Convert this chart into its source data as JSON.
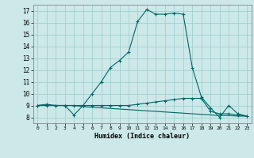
{
  "xlabel": "Humidex (Indice chaleur)",
  "bg_color": "#cce8e8",
  "line_color": "#006666",
  "grid_color": "#99cccc",
  "xlim": [
    -0.5,
    23.5
  ],
  "ylim": [
    7.5,
    17.5
  ],
  "yticks": [
    8,
    9,
    10,
    11,
    12,
    13,
    14,
    15,
    16,
    17
  ],
  "xticks": [
    0,
    1,
    2,
    3,
    4,
    5,
    6,
    7,
    8,
    9,
    10,
    11,
    12,
    13,
    14,
    15,
    16,
    17,
    18,
    19,
    20,
    21,
    22,
    23
  ],
  "line1_x": [
    0,
    1,
    2,
    3,
    4,
    5,
    6,
    7,
    8,
    9,
    10,
    11,
    12,
    13,
    14,
    15,
    16,
    17,
    18,
    19,
    20,
    21,
    22,
    23
  ],
  "line1_y": [
    9.0,
    9.1,
    9.0,
    9.0,
    8.2,
    9.0,
    10.0,
    11.0,
    12.2,
    12.8,
    13.5,
    16.1,
    17.1,
    16.7,
    16.7,
    16.8,
    16.7,
    12.2,
    9.7,
    8.8,
    8.0,
    9.0,
    8.3,
    8.1
  ],
  "line2_x": [
    0,
    1,
    2,
    3,
    4,
    5,
    6,
    7,
    8,
    9,
    10,
    11,
    12,
    13,
    14,
    15,
    16,
    17,
    18,
    19,
    20,
    21,
    22,
    23
  ],
  "line2_y": [
    9.0,
    9.0,
    9.0,
    9.0,
    9.0,
    9.0,
    9.0,
    9.0,
    9.0,
    9.0,
    9.0,
    9.1,
    9.2,
    9.3,
    9.4,
    9.5,
    9.6,
    9.6,
    9.6,
    8.5,
    8.3,
    8.3,
    8.2,
    8.1
  ],
  "line3_x": [
    0,
    1,
    2,
    3,
    4,
    5,
    6,
    7,
    8,
    9,
    10,
    11,
    12,
    13,
    14,
    15,
    16,
    17,
    18,
    19,
    20,
    21,
    22,
    23
  ],
  "line3_y": [
    9.0,
    9.0,
    9.0,
    9.0,
    9.0,
    8.9,
    8.85,
    8.8,
    8.75,
    8.7,
    8.65,
    8.6,
    8.55,
    8.5,
    8.45,
    8.4,
    8.35,
    8.3,
    8.25,
    8.2,
    8.15,
    8.15,
    8.1,
    8.1
  ]
}
